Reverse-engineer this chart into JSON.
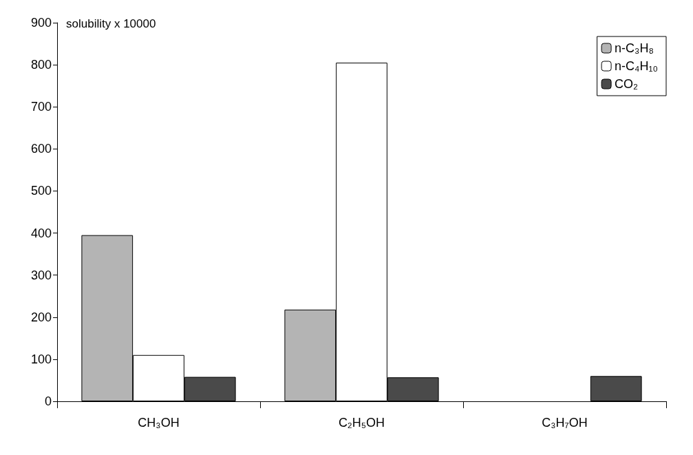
{
  "chart_data": {
    "type": "bar",
    "annotations": [
      "solubility x 10000"
    ],
    "categories": [
      "CH₃OH",
      "C₂H₅OH",
      "C₃H₇OH"
    ],
    "series": [
      {
        "name": "n-C₃H₈",
        "color": "#b4b4b4",
        "values": [
          395,
          218,
          null
        ]
      },
      {
        "name": "n-C₄H₁₀",
        "color": "#ffffff",
        "values": [
          110,
          805,
          null
        ]
      },
      {
        "name": "CO₂",
        "color": "#4a4a4a",
        "values": [
          58,
          57,
          60
        ]
      }
    ],
    "ylim": [
      0,
      900
    ],
    "yticks": [
      0,
      100,
      200,
      300,
      400,
      500,
      600,
      700,
      800,
      900
    ],
    "grid": false,
    "legend": "top right"
  }
}
